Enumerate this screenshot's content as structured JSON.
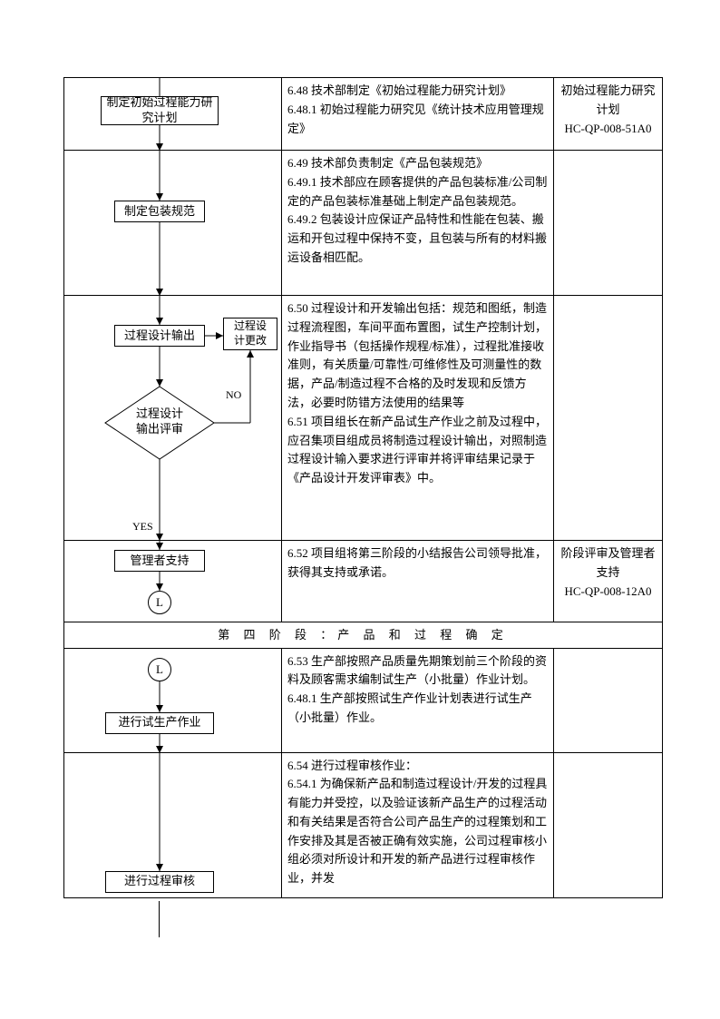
{
  "row1": {
    "flow_box1": "制定初始过程能力研\n究计划",
    "desc": "6.48 技术部制定《初始过程能力研究计划》\n6.48.1 初始过程能力研究见《统计技术应用管理规定》",
    "ref": "初始过程能力研究\n计划\nHC-QP-008-51A0"
  },
  "row2": {
    "flow_box1": "制定包装规范",
    "desc": "6.49 技术部负责制定《产品包装规范》\n6.49.1 技术部应在顾客提供的产品包装标准/公司制定的产品包装标准基础上制定产品包装规范。\n6.49.2 包装设计应保证产品特性和性能在包装、搬运和开包过程中保持不变，且包装与所有的材料搬运设备相匹配。"
  },
  "row3": {
    "flow_box_left": "过程设计输出",
    "flow_box_right": "过程设\n计更改",
    "diamond": "过程设计\n输出评审",
    "no": "NO",
    "yes": "YES",
    "desc": "6.50 过程设计和开发输出包括：规范和图纸，制造过程流程图，车间平面布置图，试生产控制计划，作业指导书（包括操作规程/标准），过程批准接收准则，有关质量/可靠性/可维修性及可测量性的数据，产品/制造过程不合格的及时发现和反馈方法，必要时防错方法使用的结果等\n6.51 项目组长在新产品试生产作业之前及过程中，应召集项目组成员将制造过程设计输出，对照制造过程设计输入要求进行评审并将评审结果记录于《产品设计开发评审表》中。"
  },
  "row4": {
    "flow_box1": "管理者支持",
    "circle": "L",
    "desc": "6.52 项目组将第三阶段的小结报告公司领导批准，获得其支持或承诺。",
    "ref": "阶段评审及管理者\n支持\nHC-QP-008-12A0"
  },
  "stage4": "第 四 阶 段 ：产 品 和 过 程 确 定",
  "row5": {
    "circle": "L",
    "flow_box1": "进行试生产作业",
    "desc": "6.53 生产部按照产品质量先期策划前三个阶段的资料及顾客需求编制试生产（小批量）作业计划。\n6.48.1 生产部按照试生产作业计划表进行试生产（小批量）作业。"
  },
  "row6": {
    "flow_box1": "进行过程审核",
    "desc": "6.54 进行过程审核作业：\n6.54.1 为确保新产品和制造过程设计/开发的过程具有能力并受控，以及验证该新产品生产的过程活动和有关结果是否符合公司产品生产的过程策划和工作安排及其是否被正确有效实施，公司过程审核小组必须对所设计和开发的新产品进行过程审核作业，并发"
  }
}
